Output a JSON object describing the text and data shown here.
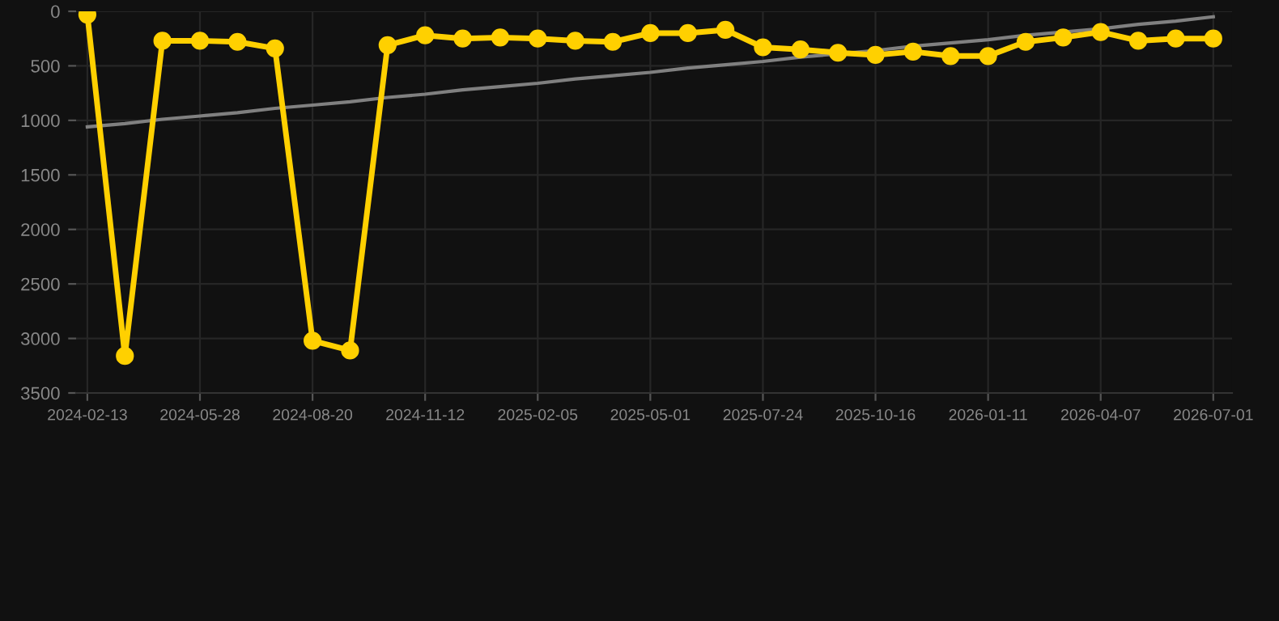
{
  "chart_data": {
    "type": "line",
    "categories": [
      "2024-02-13",
      null,
      null,
      "2024-05-28",
      null,
      null,
      "2024-08-20",
      null,
      null,
      "2024-11-12",
      null,
      null,
      "2025-02-05",
      null,
      null,
      "2025-05-01",
      null,
      null,
      "2025-07-24",
      null,
      null,
      "2025-10-16",
      null,
      null,
      "2026-01-11",
      null,
      null,
      "2026-04-07",
      null,
      null,
      "2026-07-01"
    ],
    "series": [
      {
        "color": "#ffd000",
        "marker": "circle",
        "values": [
          30,
          3160,
          270,
          270,
          280,
          340,
          3020,
          3110,
          310,
          220,
          250,
          240,
          250,
          270,
          280,
          200,
          200,
          170,
          330,
          350,
          380,
          400,
          370,
          410,
          410,
          280,
          240,
          190,
          270,
          250,
          250
        ]
      },
      {
        "type": "line",
        "color": "#808080",
        "marker": "none",
        "values": [
          1060,
          1030,
          990,
          960,
          930,
          890,
          860,
          830,
          790,
          760,
          720,
          690,
          660,
          620,
          590,
          560,
          520,
          490,
          460,
          420,
          390,
          360,
          320,
          290,
          260,
          220,
          190,
          160,
          120,
          90,
          50
        ]
      }
    ],
    "ylim": [
      3500,
      0
    ],
    "yticks": [
      0,
      500,
      1000,
      1500,
      2000,
      2500,
      3000,
      3500
    ],
    "grid": true
  }
}
